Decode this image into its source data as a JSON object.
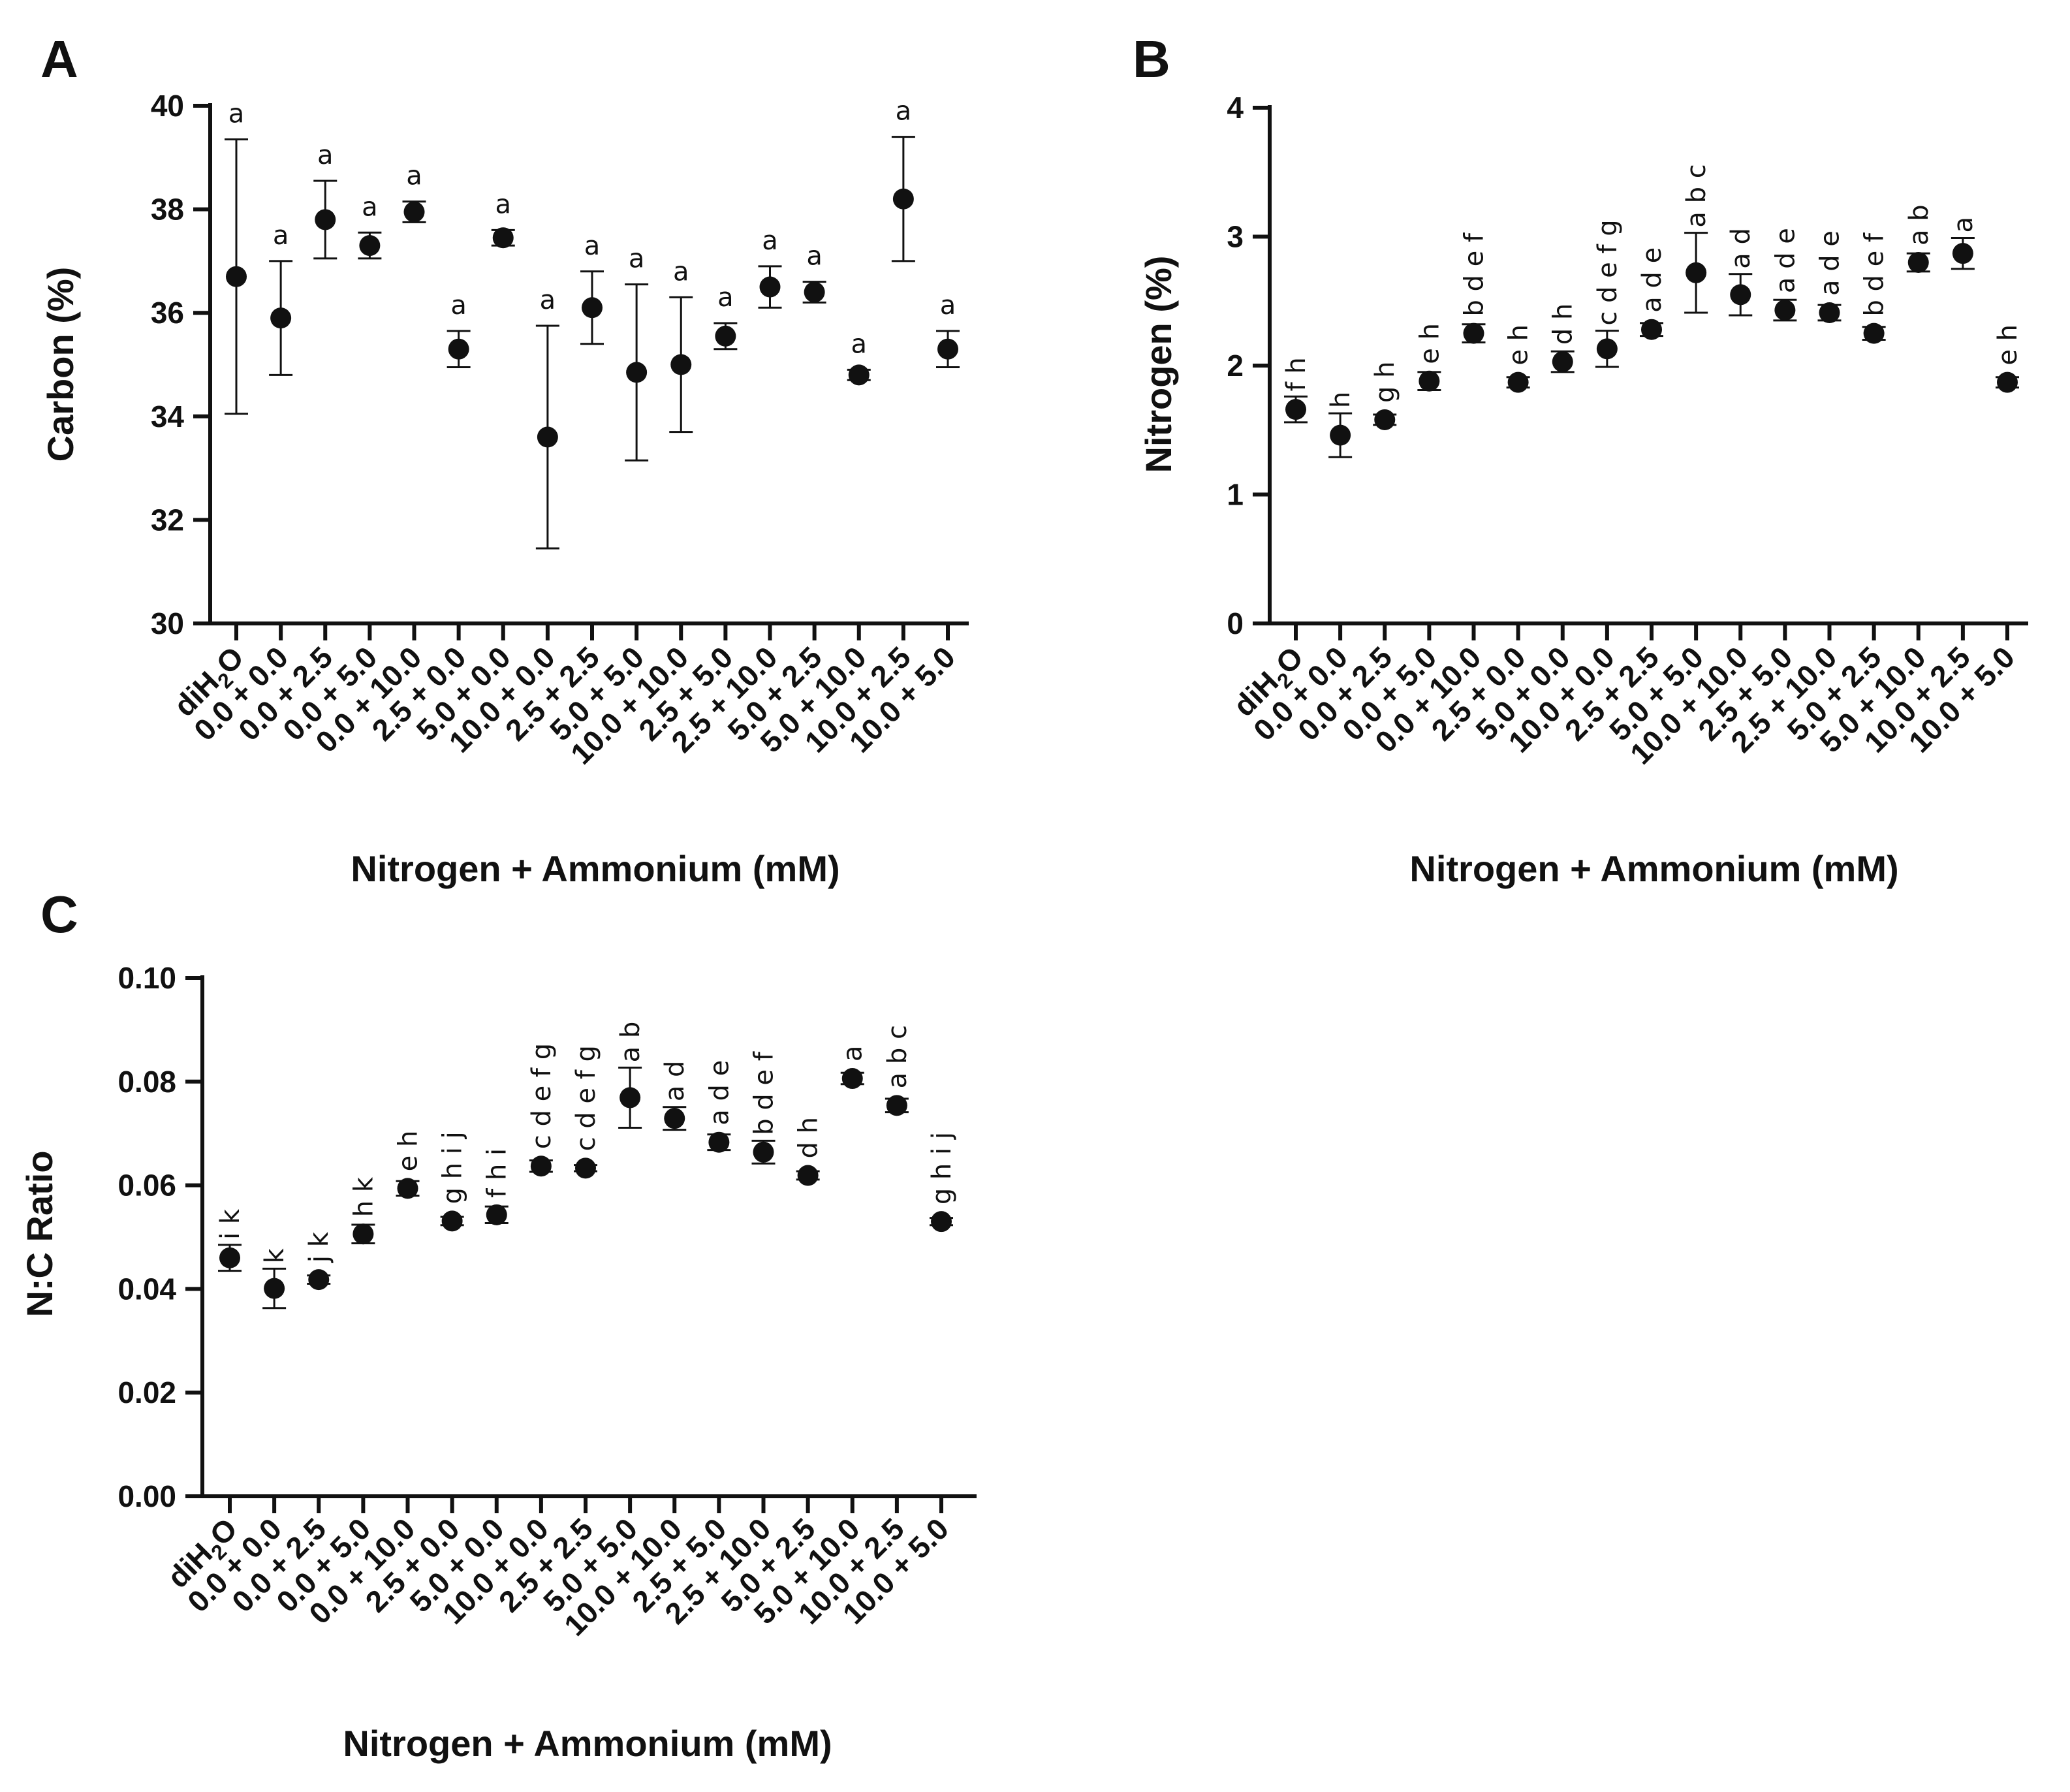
{
  "chart_data": [
    {
      "panel": "A",
      "type": "scatter",
      "ylabel": "Carbon (%)",
      "xlabel": "Nitrogen + Ammonium (mM)",
      "ylim": [
        30,
        40
      ],
      "yticks": [
        "30",
        "32",
        "34",
        "36",
        "38",
        "40"
      ],
      "categories": [
        "diH2O",
        "0.0 + 0.0",
        "0.0 + 2.5",
        "0.0 + 5.0",
        "0.0 + 10.0",
        "2.5 + 0.0",
        "5.0 + 0.0",
        "10.0 + 0.0",
        "2.5 + 2.5",
        "5.0 + 5.0",
        "10.0 + 10.0",
        "2.5 + 5.0",
        "2.5 + 10.0",
        "5.0 + 2.5",
        "5.0 + 10.0",
        "10.0 + 2.5",
        "10.0 + 5.0"
      ],
      "values": [
        36.7,
        35.9,
        37.8,
        37.3,
        37.95,
        35.3,
        37.45,
        33.6,
        36.1,
        34.85,
        35.0,
        35.55,
        36.5,
        36.4,
        34.8,
        38.2,
        35.3
      ],
      "errors": [
        2.65,
        1.1,
        0.75,
        0.25,
        0.2,
        0.35,
        0.15,
        2.15,
        0.7,
        1.7,
        1.3,
        0.25,
        0.4,
        0.2,
        0.1,
        1.2,
        0.35
      ],
      "labels": [
        "a",
        "a",
        "a",
        "a",
        "a",
        "a",
        "a",
        "a",
        "a",
        "a",
        "a",
        "a",
        "a",
        "a",
        "a",
        "a",
        "a"
      ]
    },
    {
      "panel": "B",
      "type": "scatter",
      "ylabel": "Nitrogen (%)",
      "xlabel": "Nitrogen + Ammonium (mM)",
      "ylim": [
        0,
        4
      ],
      "yticks": [
        "0",
        "1",
        "2",
        "3",
        "4"
      ],
      "categories": [
        "diH2O",
        "0.0 + 0.0",
        "0.0 + 2.5",
        "0.0 + 5.0",
        "0.0 + 10.0",
        "2.5 + 0.0",
        "5.0 + 0.0",
        "10.0 + 0.0",
        "2.5 + 2.5",
        "5.0 + 5.0",
        "10.0 + 10.0",
        "2.5 + 5.0",
        "2.5 + 10.0",
        "5.0 + 2.5",
        "5.0 + 10.0",
        "10.0 + 2.5",
        "10.0 + 5.0"
      ],
      "values": [
        1.66,
        1.46,
        1.58,
        1.88,
        2.25,
        1.87,
        2.03,
        2.13,
        2.28,
        2.72,
        2.55,
        2.43,
        2.41,
        2.25,
        2.8,
        2.87,
        1.87
      ],
      "errors": [
        0.1,
        0.17,
        0.04,
        0.07,
        0.07,
        0.04,
        0.08,
        0.14,
        0.05,
        0.31,
        0.16,
        0.08,
        0.06,
        0.05,
        0.07,
        0.12,
        0.04
      ],
      "labels": [
        "f h",
        "h",
        "g h",
        "e h",
        "b d e f",
        "e h",
        "d h",
        "c d e f g",
        "a d e",
        "a b c",
        "a d",
        "a d e",
        "a d e",
        "b d e f",
        "a b",
        "a",
        "e h"
      ]
    },
    {
      "panel": "C",
      "type": "scatter",
      "ylabel": "N:C Ratio",
      "xlabel": "Nitrogen + Ammonium (mM)",
      "ylim": [
        0.0,
        0.1
      ],
      "yticks": [
        "0.00",
        "0.02",
        "0.04",
        "0.06",
        "0.08",
        "0.10"
      ],
      "categories": [
        "diH2O",
        "0.0 + 0.0",
        "0.0 + 2.5",
        "0.0 + 5.0",
        "0.0 + 10.0",
        "2.5 + 0.0",
        "5.0 + 0.0",
        "10.0 + 0.0",
        "2.5 + 2.5",
        "5.0 + 5.0",
        "10.0 + 10.0",
        "2.5 + 5.0",
        "2.5 + 10.0",
        "5.0 + 2.5",
        "5.0 + 10.0",
        "10.0 + 2.5",
        "10.0 + 5.0"
      ],
      "values": [
        0.046,
        0.0401,
        0.0418,
        0.0506,
        0.0594,
        0.0531,
        0.0543,
        0.0637,
        0.0633,
        0.0769,
        0.0729,
        0.0683,
        0.0664,
        0.0619,
        0.0806,
        0.0754,
        0.053
      ],
      "errors": [
        0.0025,
        0.0038,
        0.0008,
        0.0018,
        0.0014,
        0.0008,
        0.0016,
        0.0011,
        0.0006,
        0.0058,
        0.0022,
        0.0015,
        0.0022,
        0.0008,
        0.0011,
        0.0013,
        0.0007
      ],
      "labels": [
        "i k",
        "k",
        "j k",
        "h k",
        "e h",
        "g h i j",
        "f h i",
        "c d e f g",
        "c d e f g",
        "a b",
        "a d",
        "a d e",
        "b d e f",
        "d h",
        "a",
        "a b c",
        "g h i j"
      ]
    }
  ]
}
